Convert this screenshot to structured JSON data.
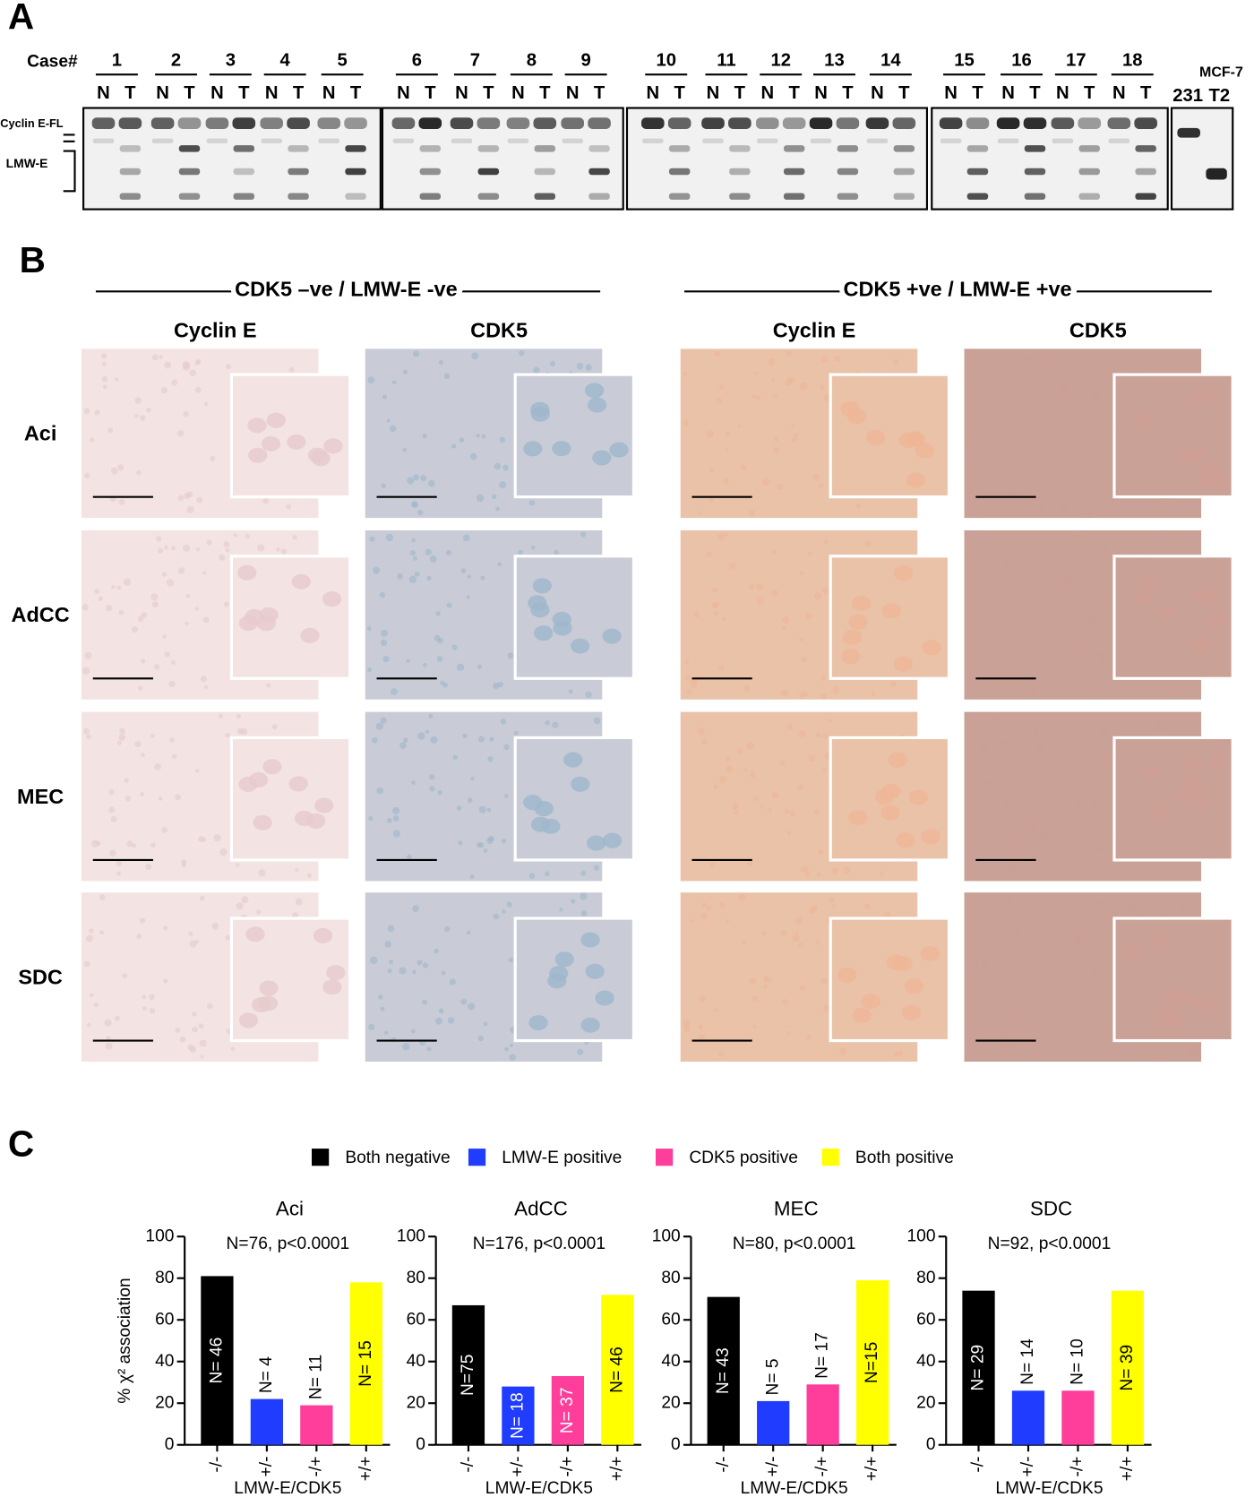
{
  "panel_labels": [
    "A",
    "B",
    "C"
  ],
  "panel_a": {
    "case_label": "Case#",
    "cases": [
      "1",
      "2",
      "3",
      "4",
      "5",
      "6",
      "7",
      "8",
      "9",
      "10",
      "11",
      "12",
      "13",
      "14",
      "15",
      "16",
      "17",
      "18"
    ],
    "lane_labels": [
      "N",
      "T"
    ],
    "band_labels": [
      "Cyclin E-FL",
      "LMW-E"
    ],
    "cell_lines": [
      "231",
      "MCF-7",
      "T2"
    ]
  },
  "panel_b": {
    "groups": [
      "CDK5 –ve / LMW-E -ve",
      "CDK5 +ve / LMW-E +ve"
    ],
    "stains": [
      "Cyclin E",
      "CDK5"
    ],
    "tumor_types": [
      "Aci",
      "AdCC",
      "MEC",
      "SDC"
    ]
  },
  "legend": [
    {
      "label": "Both negative",
      "color": "#000000"
    },
    {
      "label": "LMW-E positive",
      "color": "#1f3cff"
    },
    {
      "label": "CDK5  positive",
      "color": "#ff3d9a"
    },
    {
      "label": "Both positive",
      "color": "#ffff00"
    }
  ],
  "chart_data": [
    {
      "type": "bar",
      "title": "Aci",
      "subtitle": "N=76, p<0.0001",
      "ylabel": "% χ² association",
      "xlabel": "LMW-E/CDK5",
      "categories": [
        "-/-",
        "+/-",
        "-/+",
        "+/+"
      ],
      "values": [
        81,
        22,
        19,
        78
      ],
      "bar_labels": [
        "N= 46",
        "N= 4",
        "N= 11",
        "N= 15"
      ],
      "label_inside": [
        true,
        false,
        false,
        true
      ],
      "ylim": [
        0,
        100
      ],
      "yticks": [
        0,
        20,
        40,
        60,
        80,
        100
      ]
    },
    {
      "type": "bar",
      "title": "AdCC",
      "subtitle": "N=176, p<0.0001",
      "xlabel": "LMW-E/CDK5",
      "categories": [
        "-/-",
        "+/-",
        "-/+",
        "+/+"
      ],
      "values": [
        67,
        28,
        33,
        72
      ],
      "bar_labels": [
        "N=75",
        "N= 18",
        "N= 37",
        "N= 46"
      ],
      "label_inside": [
        true,
        true,
        true,
        true
      ],
      "ylim": [
        0,
        100
      ],
      "yticks": [
        0,
        20,
        40,
        60,
        80,
        100
      ]
    },
    {
      "type": "bar",
      "title": "MEC",
      "subtitle": "N=80, p<0.0001",
      "xlabel": "LMW-E/CDK5",
      "categories": [
        "-/-",
        "+/-",
        "-/+",
        "+/+"
      ],
      "values": [
        71,
        21,
        29,
        79
      ],
      "bar_labels": [
        "N= 43",
        "N= 5",
        "N= 17",
        "N=15"
      ],
      "label_inside": [
        true,
        false,
        false,
        true
      ],
      "ylim": [
        0,
        100
      ],
      "yticks": [
        0,
        20,
        40,
        60,
        80,
        100
      ]
    },
    {
      "type": "bar",
      "title": "SDC",
      "subtitle": "N=92, p<0.0001",
      "xlabel": "LMW-E/CDK5",
      "categories": [
        "-/-",
        "+/-",
        "-/+",
        "+/+"
      ],
      "values": [
        74,
        26,
        26,
        74
      ],
      "bar_labels": [
        "N= 29",
        "N= 14",
        "N= 10",
        "N= 39"
      ],
      "label_inside": [
        true,
        false,
        false,
        true
      ],
      "ylim": [
        0,
        100
      ],
      "yticks": [
        0,
        20,
        40,
        60,
        80,
        100
      ]
    }
  ]
}
